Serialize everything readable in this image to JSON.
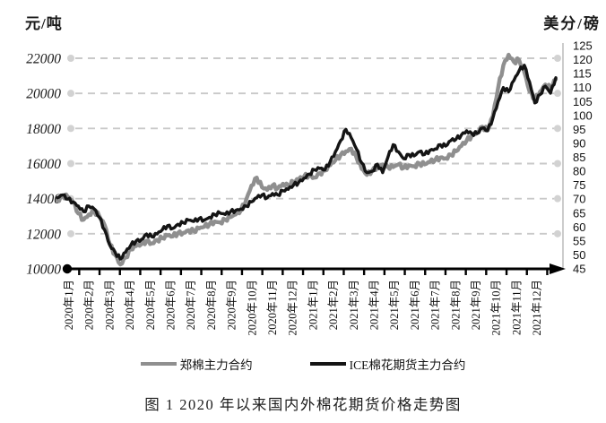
{
  "figure": {
    "background": "#ffffff"
  },
  "legend": {
    "series1_label": "郑棉主力合约",
    "series2_label": "ICE棉花期货主力合约"
  },
  "caption": "图 1 2020 年以来国内外棉花期货价格走势图",
  "chart_data": {
    "type": "line",
    "title": "图 1 2020 年以来国内外棉花期货价格走势图",
    "grid": "dashed horizontal gridlines with round end dots",
    "legend_position": "bottom",
    "left_y": {
      "label": "元/吨",
      "range": [
        10000,
        22000
      ],
      "tick_step": 2000,
      "ticks": [
        22000,
        20000,
        18000,
        16000,
        14000,
        12000,
        10000
      ]
    },
    "right_y": {
      "label": "美分/磅",
      "range": [
        45,
        125
      ],
      "tick_step": 5,
      "ticks": [
        125,
        120,
        115,
        110,
        105,
        100,
        95,
        90,
        85,
        80,
        75,
        70,
        65,
        60,
        55,
        50,
        45
      ]
    },
    "x_axis": {
      "labels": [
        "2020年1月",
        "2020年2月",
        "2020年3月",
        "2020年4月",
        "2020年5月",
        "2020年6月",
        "2020年7月",
        "2020年8月",
        "2020年9月",
        "2020年10月",
        "2020年11月",
        "2020年12月",
        "2021年1月",
        "2021年2月",
        "2021年3月",
        "2021年4月",
        "2021年5月",
        "2021年6月",
        "2021年7月",
        "2021年8月",
        "2021年9月",
        "2021年10月",
        "2021年11月",
        "2021年12月"
      ],
      "samples_per_month": 4
    },
    "colors": {
      "series1": "#8f8f8f",
      "series2": "#141414",
      "gridline": "#c9c9c9",
      "grid_dot": "#d2d2d2",
      "axis": "#000000",
      "right_axis_line": "#ababab"
    },
    "series": [
      {
        "name": "郑棉主力合约",
        "axis": "left",
        "unit": "元/吨",
        "color": "#8f8f8f",
        "values": [
          13900,
          14150,
          14100,
          13800,
          13150,
          12800,
          13100,
          13300,
          13000,
          12500,
          11400,
          10800,
          10250,
          10650,
          11100,
          11300,
          11400,
          11600,
          11450,
          11650,
          11750,
          11900,
          11850,
          12050,
          12050,
          12200,
          12150,
          12300,
          12400,
          12550,
          12700,
          12650,
          12800,
          12950,
          13100,
          13350,
          13950,
          14750,
          15200,
          14650,
          14500,
          14750,
          14600,
          14850,
          14750,
          14950,
          15100,
          15250,
          15350,
          15200,
          15450,
          15600,
          15900,
          16200,
          16500,
          16700,
          16850,
          16350,
          15700,
          15350,
          15600,
          15800,
          15950,
          15800,
          15800,
          15950,
          15750,
          15900,
          15850,
          16000,
          15950,
          16100,
          16200,
          16350,
          16300,
          16500,
          16700,
          17000,
          17300,
          17600,
          17800,
          18100,
          17900,
          18700,
          20300,
          21600,
          22200,
          21800,
          21900,
          21200,
          20100,
          19700,
          20100,
          20500,
          20300,
          20800
        ]
      },
      {
        "name": "ICE棉花期货主力合约",
        "axis": "right",
        "unit": "美分/磅",
        "color": "#141414",
        "values": [
          70.5,
          71.5,
          70.0,
          69.0,
          67.5,
          65.5,
          67.5,
          66.5,
          63.5,
          59.0,
          53.5,
          51.0,
          48.5,
          51.0,
          53.5,
          55.0,
          55.5,
          57.5,
          56.5,
          57.5,
          59.0,
          60.5,
          59.5,
          61.0,
          61.5,
          62.5,
          62.0,
          63.0,
          62.5,
          63.5,
          64.5,
          65.0,
          64.5,
          65.5,
          66.0,
          66.5,
          67.5,
          69.0,
          70.5,
          71.5,
          70.5,
          72.0,
          71.5,
          73.0,
          73.5,
          75.0,
          76.0,
          77.5,
          79.0,
          80.5,
          81.0,
          80.5,
          83.5,
          87.0,
          91.0,
          95.0,
          92.0,
          88.0,
          83.0,
          79.5,
          80.0,
          82.5,
          79.5,
          85.0,
          89.5,
          87.0,
          84.5,
          86.0,
          85.5,
          87.0,
          86.0,
          87.5,
          88.0,
          89.5,
          89.0,
          91.0,
          91.5,
          93.0,
          94.5,
          93.5,
          93.5,
          95.5,
          94.5,
          99.0,
          105.0,
          110.0,
          108.5,
          112.5,
          116.0,
          118.0,
          112.0,
          104.5,
          107.5,
          110.5,
          108.0,
          113.5
        ]
      }
    ]
  }
}
